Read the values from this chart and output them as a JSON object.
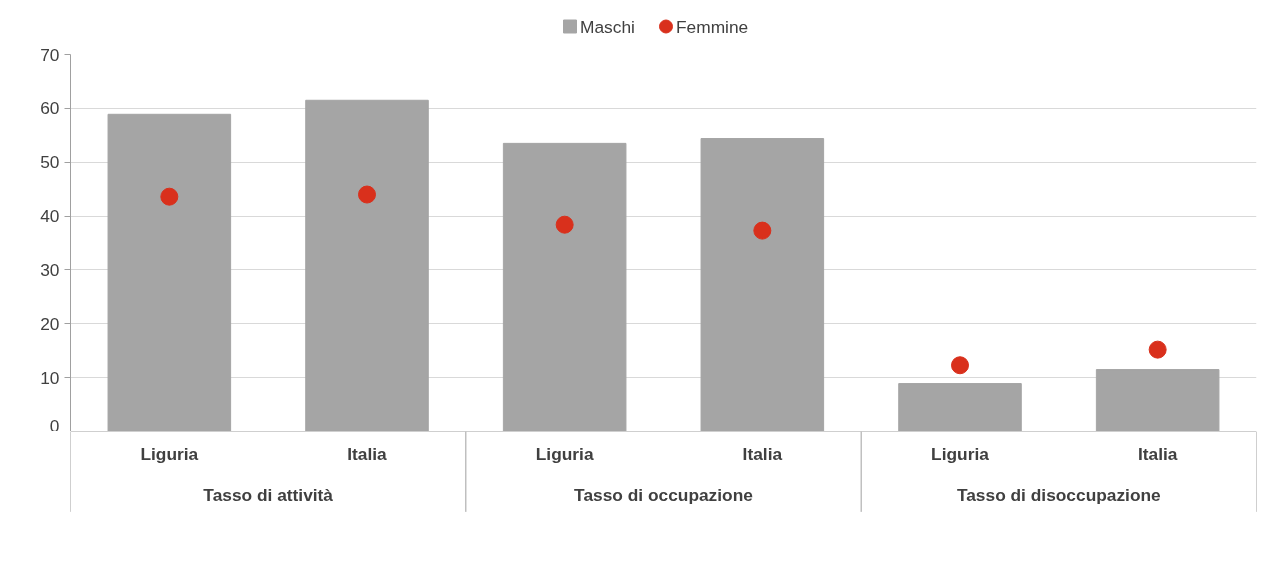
{
  "chart_data": {
    "type": "bar",
    "categories": [
      "Liguria",
      "Italia",
      "Liguria",
      "Italia",
      "Liguria",
      "Italia"
    ],
    "annotations": [
      "Tasso di attività",
      "Tasso di occupazione",
      "Tasso di disoccupazione"
    ],
    "series": [
      {
        "name": "Maschi",
        "color": "#a5a5a5",
        "values": [
          58.9,
          61.5,
          53.5,
          54.4,
          8.9,
          11.5
        ]
      },
      {
        "name": "Femmine",
        "type": "scatter",
        "color": "#d9301c",
        "values": [
          43.6,
          44.0,
          38.4,
          37.3,
          12.3,
          15.2
        ]
      }
    ],
    "ylim": [
      0,
      70
    ],
    "yticks": [
      0,
      10,
      20,
      30,
      40,
      50,
      60,
      70
    ],
    "grid": "y",
    "legend": "top",
    "marker": "circle"
  }
}
